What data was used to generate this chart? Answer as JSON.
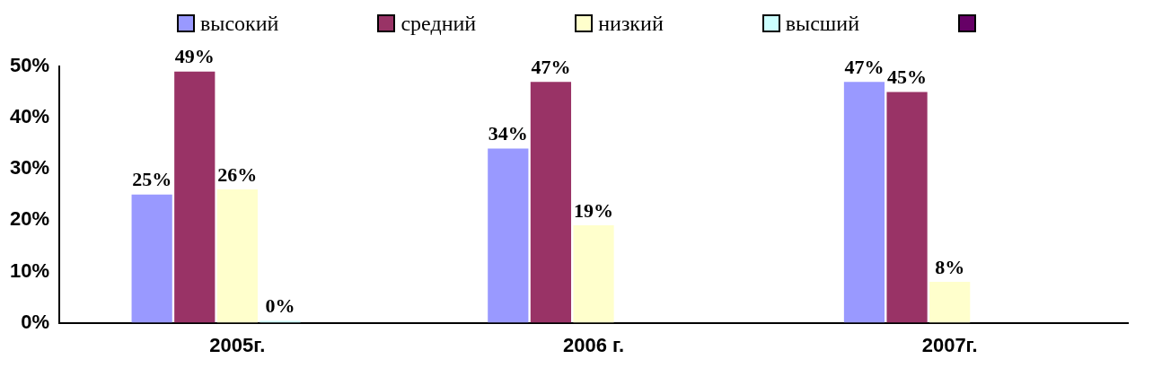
{
  "chart_data": {
    "type": "bar",
    "categories": [
      "2005г.",
      "2006 г.",
      "2007г."
    ],
    "series": [
      {
        "name": "высокий",
        "color": "#9999ff",
        "values": [
          25,
          34,
          47
        ],
        "value_labels": [
          "25%",
          "34%",
          "47%"
        ]
      },
      {
        "name": "средний",
        "color": "#993366",
        "values": [
          49,
          47,
          45
        ],
        "value_labels": [
          "49%",
          "47%",
          "45%"
        ]
      },
      {
        "name": "низкий",
        "color": "#ffffcc",
        "values": [
          26,
          19,
          8
        ],
        "value_labels": [
          "26%",
          "19%",
          "8%"
        ]
      },
      {
        "name": "высший",
        "color": "#ccffff",
        "values": [
          0,
          null,
          null
        ],
        "value_labels": [
          "0%",
          null,
          null
        ]
      },
      {
        "color": "#660066",
        "values": [
          null,
          null,
          null
        ]
      }
    ],
    "ylim": [
      0,
      50
    ],
    "yticks": [
      {
        "value": 0,
        "label": "0%"
      },
      {
        "value": 10,
        "label": "10%"
      },
      {
        "value": 20,
        "label": "20%"
      },
      {
        "value": 30,
        "label": "30%"
      },
      {
        "value": 40,
        "label": "40%"
      },
      {
        "value": 50,
        "label": "50%"
      }
    ],
    "grid": false,
    "legend": "top"
  }
}
